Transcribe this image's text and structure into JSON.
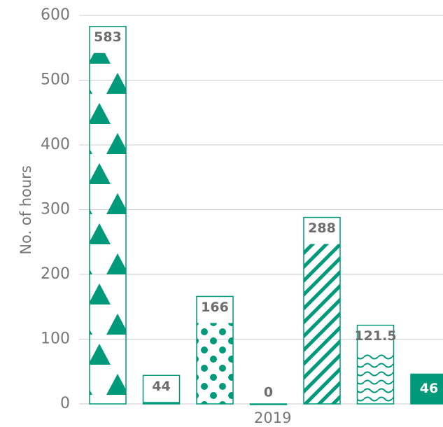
{
  "chart_data": {
    "type": "bar",
    "y_label": "No. of hours",
    "categories": [
      "2019"
    ],
    "ylim": [
      0,
      600
    ],
    "yticks": [
      0,
      100,
      200,
      300,
      400,
      500,
      600
    ],
    "grid": true,
    "color": "#00997a",
    "series": [
      {
        "values": [
          583
        ],
        "pattern": "triangles"
      },
      {
        "values": [
          44
        ],
        "pattern": "stripes"
      },
      {
        "values": [
          166
        ],
        "pattern": "dots"
      },
      {
        "values": [
          0
        ],
        "pattern": "none"
      },
      {
        "values": [
          288
        ],
        "pattern": "dashes"
      },
      {
        "values": [
          121.5
        ],
        "pattern": "waves"
      },
      {
        "values": [
          46
        ],
        "pattern": "solid"
      }
    ]
  }
}
